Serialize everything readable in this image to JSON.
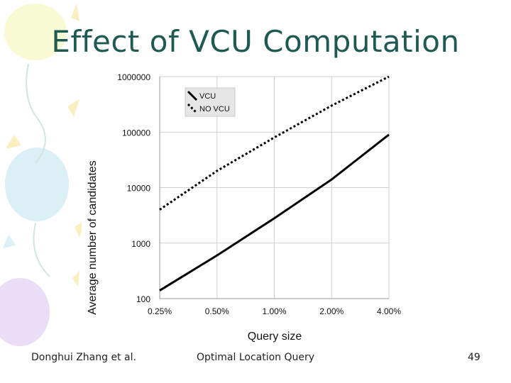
{
  "slide": {
    "title": "Effect of VCU Computation",
    "footer_author": "Donghui Zhang et al.",
    "footer_subject": "Optimal Location Query",
    "page_number": "49"
  },
  "chart_data": {
    "type": "line",
    "xlabel": "Query size",
    "ylabel": "Average number of candidates",
    "categories": [
      "0.25%",
      "0.50%",
      "1.00%",
      "2.00%",
      "4.00%"
    ],
    "yscale": "log",
    "ylim": [
      100,
      1000000
    ],
    "yticks": [
      100,
      1000,
      10000,
      100000,
      1000000
    ],
    "ytick_labels": [
      "100",
      "1000",
      "10000",
      "100000",
      "1000000"
    ],
    "grid": true,
    "legend_position": "top-left",
    "series": [
      {
        "name": "VCU",
        "style": "solid",
        "values": [
          140,
          600,
          2800,
          14000,
          90000
        ]
      },
      {
        "name": "NO VCU",
        "style": "dotted",
        "values": [
          4000,
          20000,
          80000,
          300000,
          1000000
        ]
      }
    ],
    "colors": {
      "line": "#000000",
      "grid": "#cfcfcf",
      "legend_bg": "#e6e6e6",
      "plot_bg": "#ffffff"
    }
  }
}
